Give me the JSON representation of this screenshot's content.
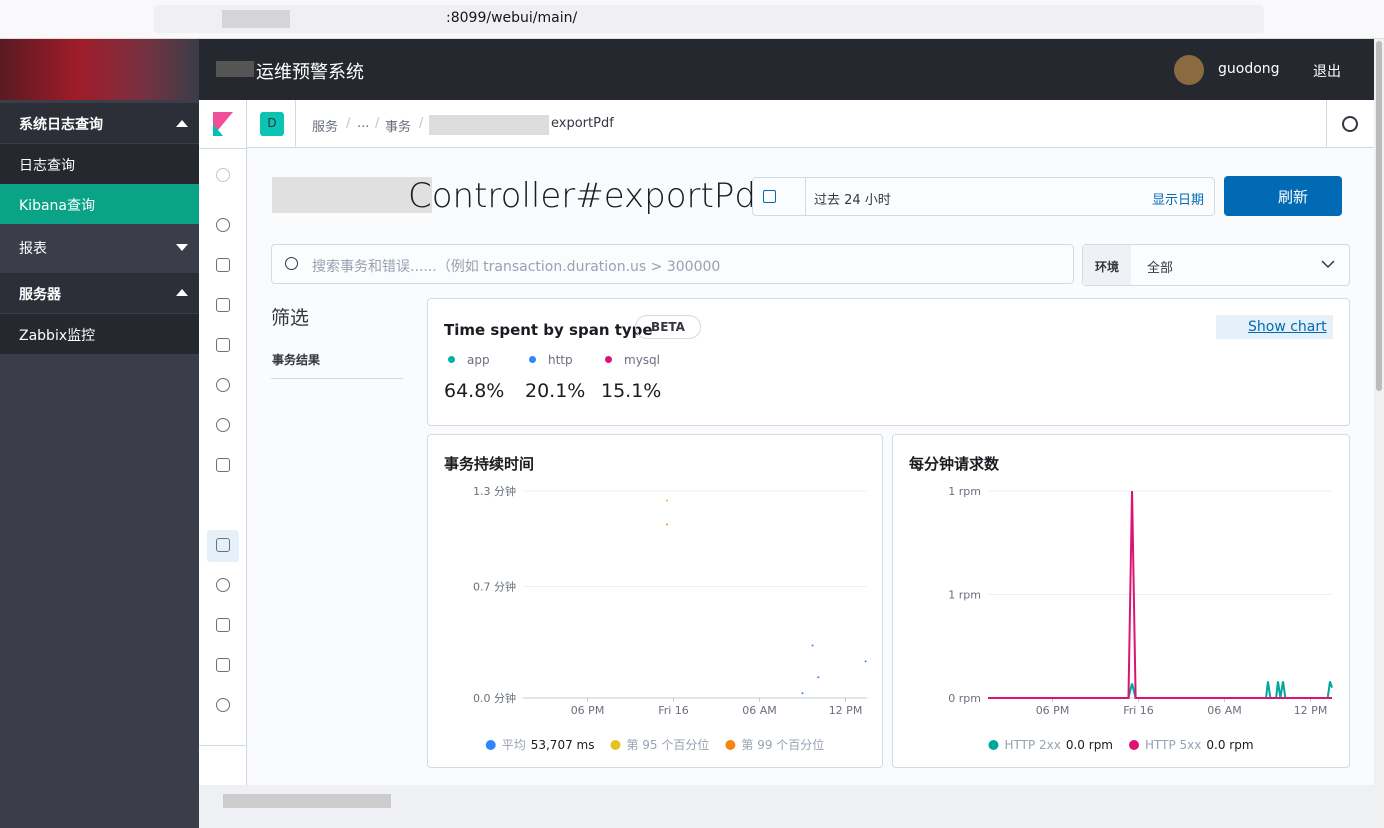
{
  "browser": {
    "url": ":8099/webui/main/"
  },
  "header": {
    "title": "运维预警系统",
    "user": "guodong",
    "logout": "退出"
  },
  "sidebar": {
    "items": [
      "系统日志查询",
      "日志查询",
      "Kibana查询",
      "报表",
      "服务器",
      "Zabbix监控"
    ]
  },
  "breadcrumb": {
    "badge": "D",
    "items": [
      "服务",
      "...",
      "事务",
      "exportPdf"
    ]
  },
  "page": {
    "title": "Controller#exportPdf",
    "date_range": "过去 24 小时",
    "show_dates": "显示日期",
    "refresh": "刷新",
    "search_placeholder": "搜索事务和错误......（例如 transaction.duration.us > 300000",
    "env_label": "环境",
    "env_value": "全部",
    "filter_title": "筛选",
    "filter_item": "事务结果"
  },
  "span_panel": {
    "title": "Time spent by span type",
    "badge": "BETA",
    "show_chart": "Show chart",
    "items": [
      {
        "name": "app",
        "color": "#00b3a4",
        "value": "64.8%"
      },
      {
        "name": "http",
        "color": "#3185fc",
        "value": "20.1%"
      },
      {
        "name": "mysql",
        "color": "#db1374",
        "value": "15.1%"
      }
    ]
  },
  "chart_data": [
    {
      "type": "scatter",
      "title": "事务持续时间",
      "xlim": [
        13.5,
        37.5
      ],
      "xticks": [
        {
          "value": 18,
          "label": "06 PM"
        },
        {
          "value": 24,
          "label": "Fri 16"
        },
        {
          "value": 30,
          "label": "06 AM"
        },
        {
          "value": 36,
          "label": "12 PM"
        }
      ],
      "ylim": [
        0,
        1.3
      ],
      "yticks": [
        {
          "value": 0,
          "label": "0.0 分钟"
        },
        {
          "value": 0.7,
          "label": "0.7 分钟"
        },
        {
          "value": 1.3,
          "label": "1.3 分钟"
        }
      ],
      "grid": true,
      "series": [
        {
          "name": "平均",
          "color": "#3185fc",
          "summary": "53,707 ms",
          "x": [
            33.0,
            33.7,
            34.1,
            37.4
          ],
          "values": [
            0.03,
            0.33,
            0.13,
            0.23
          ]
        },
        {
          "name": "第 95 个百分位",
          "color": "#e6c220",
          "x": [
            23.55
          ],
          "values": [
            1.24
          ]
        },
        {
          "name": "第 99 个百分位",
          "color": "#f98510",
          "x": [
            23.55
          ],
          "values": [
            1.09
          ]
        }
      ]
    },
    {
      "type": "line",
      "title": "每分钟请求数",
      "xlim": [
        13.5,
        37.5
      ],
      "xticks": [
        {
          "value": 18,
          "label": "06 PM"
        },
        {
          "value": 24,
          "label": "Fri 16"
        },
        {
          "value": 30,
          "label": "06 AM"
        },
        {
          "value": 36,
          "label": "12 PM"
        }
      ],
      "ylim": [
        0,
        1
      ],
      "yticks": [
        {
          "value": 0,
          "label": "0 rpm"
        },
        {
          "value": 0.5,
          "label": "1 rpm"
        },
        {
          "value": 1,
          "label": "1 rpm"
        }
      ],
      "grid": true,
      "series": [
        {
          "name": "HTTP 2xx",
          "color": "#00a69b",
          "summary": "0.0 rpm",
          "x": [
            13.5,
            23.3,
            23.55,
            23.8,
            32.9,
            33.03,
            33.2,
            33.6,
            33.73,
            33.9,
            34.08,
            34.25,
            37.2,
            37.36,
            37.5
          ],
          "values": [
            0,
            0,
            0.07,
            0,
            0,
            0.08,
            0,
            0,
            0.08,
            0,
            0.08,
            0,
            0,
            0.08,
            0.05
          ]
        },
        {
          "name": "HTTP 5xx",
          "color": "#db1374",
          "summary": "0.0 rpm",
          "x": [
            13.5,
            23.3,
            23.55,
            23.8,
            37.5
          ],
          "values": [
            0,
            0,
            1,
            0,
            0
          ]
        }
      ]
    }
  ]
}
